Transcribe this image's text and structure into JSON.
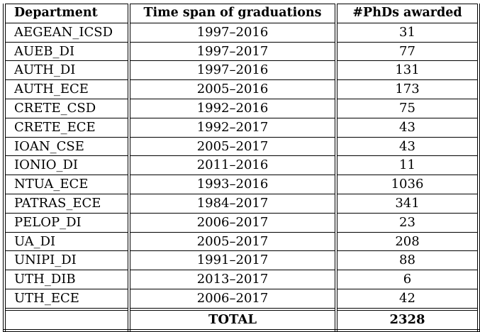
{
  "table": {
    "headers": {
      "department": "Department",
      "time_span": "Time span of graduations",
      "phds": "#PhDs awarded"
    },
    "rows": [
      {
        "department": "AEGEAN_ICSD",
        "time_span": "1997–2016",
        "phds": "31"
      },
      {
        "department": "AUEB_DI",
        "time_span": "1997–2017",
        "phds": "77"
      },
      {
        "department": "AUTH_DI",
        "time_span": "1997–2016",
        "phds": "131"
      },
      {
        "department": "AUTH_ECE",
        "time_span": "2005–2016",
        "phds": "173"
      },
      {
        "department": "CRETE_CSD",
        "time_span": "1992–2016",
        "phds": "75"
      },
      {
        "department": "CRETE_ECE",
        "time_span": "1992–2017",
        "phds": "43"
      },
      {
        "department": "IOAN_CSE",
        "time_span": "2005–2017",
        "phds": "43"
      },
      {
        "department": "IONIO_DI",
        "time_span": "2011–2016",
        "phds": "11"
      },
      {
        "department": "NTUA_ECE",
        "time_span": "1993–2016",
        "phds": "1036"
      },
      {
        "department": "PATRAS_ECE",
        "time_span": "1984–2017",
        "phds": "341"
      },
      {
        "department": "PELOP_DI",
        "time_span": "2006–2017",
        "phds": "23"
      },
      {
        "department": "UA_DI",
        "time_span": "2005–2017",
        "phds": "208"
      },
      {
        "department": "UNIPI_DI",
        "time_span": "1991–2017",
        "phds": "88"
      },
      {
        "department": "UTH_DIB",
        "time_span": "2013–2017",
        "phds": "6"
      },
      {
        "department": "UTH_ECE",
        "time_span": "2006–2017",
        "phds": "42"
      }
    ],
    "total": {
      "department": "",
      "time_span": "TOTAL",
      "phds": "2328"
    }
  }
}
